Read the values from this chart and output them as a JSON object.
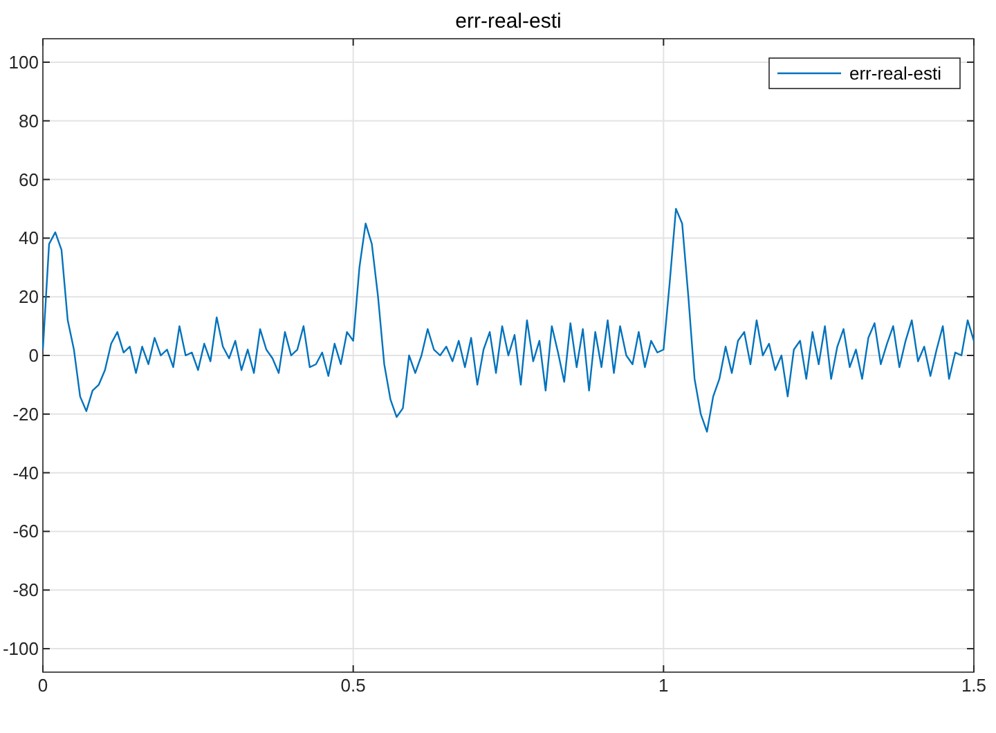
{
  "chart_data": {
    "type": "line",
    "title": "err-real-esti",
    "x": [
      0,
      0.01,
      0.02,
      0.03,
      0.04,
      0.05,
      0.06,
      0.07,
      0.08,
      0.09,
      0.1,
      0.11,
      0.12,
      0.13,
      0.14,
      0.15,
      0.16,
      0.17,
      0.18,
      0.19,
      0.2,
      0.21,
      0.22,
      0.23,
      0.24,
      0.25,
      0.26,
      0.27,
      0.28,
      0.29,
      0.3,
      0.31,
      0.32,
      0.33,
      0.34,
      0.35,
      0.36,
      0.37,
      0.38,
      0.39,
      0.4,
      0.41,
      0.42,
      0.43,
      0.44,
      0.45,
      0.46,
      0.47,
      0.48,
      0.49,
      0.5,
      0.51,
      0.52,
      0.53,
      0.54,
      0.55,
      0.56,
      0.57,
      0.58,
      0.59,
      0.6,
      0.61,
      0.62,
      0.63,
      0.64,
      0.65,
      0.66,
      0.67,
      0.68,
      0.69,
      0.7,
      0.71,
      0.72,
      0.73,
      0.74,
      0.75,
      0.76,
      0.77,
      0.78,
      0.79,
      0.8,
      0.81,
      0.82,
      0.83,
      0.84,
      0.85,
      0.86,
      0.87,
      0.88,
      0.89,
      0.9,
      0.91,
      0.92,
      0.93,
      0.94,
      0.95,
      0.96,
      0.97,
      0.98,
      0.99,
      1,
      1.01,
      1.02,
      1.03,
      1.04,
      1.05,
      1.06,
      1.07,
      1.08,
      1.09,
      1.1,
      1.11,
      1.12,
      1.13,
      1.14,
      1.15,
      1.16,
      1.17,
      1.18,
      1.19,
      1.2,
      1.21,
      1.22,
      1.23,
      1.24,
      1.25,
      1.26,
      1.27,
      1.28,
      1.29,
      1.3,
      1.31,
      1.32,
      1.33,
      1.34,
      1.35,
      1.36,
      1.37,
      1.38,
      1.39,
      1.4,
      1.41,
      1.42,
      1.43,
      1.44,
      1.45,
      1.46,
      1.47,
      1.48,
      1.49,
      1.5
    ],
    "series": [
      {
        "name": "err-real-esti",
        "color": "#0072bd",
        "values": [
          2,
          38,
          42,
          36,
          12,
          2,
          -14,
          -19,
          -12,
          -10,
          -5,
          4,
          8,
          1,
          3,
          -6,
          3,
          -3,
          6,
          0,
          2,
          -4,
          10,
          0,
          1,
          -5,
          4,
          -2,
          13,
          3,
          -1,
          5,
          -5,
          2,
          -6,
          9,
          2,
          -1,
          -6,
          8,
          0,
          2,
          10,
          -4,
          -3,
          1,
          -7,
          4,
          -3,
          8,
          5,
          30,
          45,
          38,
          20,
          -3,
          -15,
          -21,
          -18,
          0,
          -6,
          0,
          9,
          2,
          0,
          3,
          -2,
          5,
          -4,
          6,
          -10,
          2,
          8,
          -6,
          10,
          0,
          7,
          -10,
          12,
          -2,
          5,
          -12,
          10,
          1,
          -9,
          11,
          -4,
          9,
          -12,
          8,
          -4,
          12,
          -6,
          10,
          0,
          -3,
          8,
          -4,
          5,
          1,
          2,
          25,
          50,
          45,
          20,
          -8,
          -20,
          -26,
          -14,
          -8,
          3,
          -6,
          5,
          8,
          -3,
          12,
          0,
          4,
          -5,
          0,
          -14,
          2,
          5,
          -8,
          8,
          -3,
          10,
          -8,
          3,
          9,
          -4,
          2,
          -8,
          6,
          11,
          -3,
          4,
          10,
          -4,
          5,
          12,
          -2,
          3,
          -7,
          2,
          10,
          -8,
          1,
          0,
          12,
          5
        ]
      }
    ],
    "xlim": [
      0,
      1.5
    ],
    "xticks": [
      0,
      0.5,
      1,
      1.5
    ],
    "ylim": [
      -108,
      108
    ],
    "yticks": [
      -100,
      -80,
      -60,
      -40,
      -20,
      0,
      20,
      40,
      60,
      80,
      100
    ],
    "grid": true,
    "legend": "top right",
    "line_style": "solid",
    "marker": "none"
  }
}
